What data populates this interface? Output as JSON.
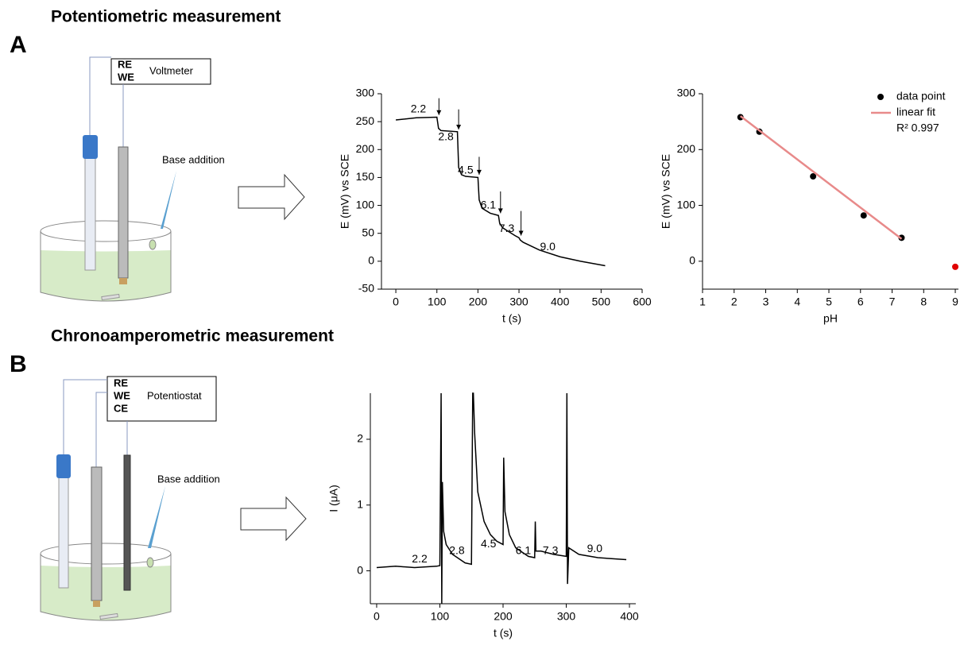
{
  "panels": [
    {
      "label": "A",
      "title": "Potentiometric measurement",
      "electrodes": [
        "RE",
        "WE"
      ],
      "instrument": "Voltmeter",
      "note": "Base addition"
    },
    {
      "label": "B",
      "title": "Chronoamperometric measurement",
      "electrodes": [
        "RE",
        "WE",
        "CE"
      ],
      "instrument": "Potentiostat",
      "note": "Base addition"
    }
  ],
  "chart_data": [
    {
      "type": "line",
      "xlabel": "t (s)",
      "ylabel": "E (mV) vs SCE",
      "xlim": [
        -35,
        600
      ],
      "xticks": [
        0,
        100,
        200,
        300,
        400,
        500,
        600
      ],
      "ylim": [
        -50,
        300
      ],
      "yticks": [
        -50,
        0,
        50,
        100,
        150,
        200,
        250,
        300
      ],
      "series": [
        {
          "color": "#000000",
          "x": [
            0,
            50,
            100,
            104,
            110,
            150,
            153,
            160,
            170,
            200,
            203,
            210,
            230,
            250,
            253,
            260,
            290,
            300,
            303,
            310,
            350,
            400,
            450,
            510
          ],
          "values": [
            253,
            257,
            258,
            238,
            234,
            232,
            168,
            155,
            152,
            150,
            110,
            95,
            86,
            82,
            68,
            60,
            46,
            42,
            38,
            34,
            20,
            8,
            0,
            -8
          ]
        }
      ],
      "annotations": [
        "2.2",
        "2.8",
        "4.5",
        "6.1",
        "7.3",
        "9.0"
      ]
    },
    {
      "type": "scatter",
      "xlabel": "pH",
      "ylabel": "E (mV) vs SCE",
      "xlim": [
        1,
        9.1
      ],
      "xticks": [
        1,
        2,
        3,
        4,
        5,
        6,
        7,
        8,
        9
      ],
      "ylim": [
        -50,
        300
      ],
      "yticks": [
        0,
        100,
        200,
        300
      ],
      "legend": "upper right",
      "series": [
        {
          "name": "data point",
          "mode": "markers",
          "color": "#000000",
          "colors": [
            "#000000",
            "#000000",
            "#000000",
            "#000000",
            "#000000",
            "#e00000"
          ],
          "x": [
            2.2,
            2.8,
            4.5,
            6.1,
            7.3,
            9.0
          ],
          "values": [
            258,
            232,
            152,
            82,
            42,
            -10
          ]
        },
        {
          "name": "linear fit",
          "mode": "line",
          "color": "#e88a8a",
          "x": [
            2.2,
            7.3
          ],
          "values": [
            260,
            40
          ]
        }
      ],
      "fit_label": "R² 0.997"
    },
    {
      "type": "line",
      "xlabel": "t (s)",
      "ylabel": "I (μA)",
      "xlim": [
        -10,
        410
      ],
      "xticks": [
        0,
        100,
        200,
        300,
        400
      ],
      "ylim": [
        -0.5,
        2.7
      ],
      "yticks": [
        0,
        1,
        2
      ],
      "series": [
        {
          "color": "#000000",
          "x": [
            0,
            30,
            60,
            95,
            100,
            102,
            103,
            104,
            106,
            110,
            120,
            140,
            150,
            152,
            153,
            155,
            160,
            170,
            180,
            190,
            200,
            201,
            203,
            210,
            220,
            240,
            250,
            251,
            252,
            260,
            280,
            300,
            301,
            302,
            304,
            320,
            350,
            395
          ],
          "values": [
            0.05,
            0.07,
            0.05,
            0.07,
            0.08,
            2.7,
            -0.5,
            1.35,
            0.6,
            0.4,
            0.25,
            0.12,
            0.1,
            2.7,
            2.7,
            2.1,
            1.2,
            0.75,
            0.55,
            0.45,
            0.4,
            1.72,
            0.9,
            0.55,
            0.35,
            0.22,
            0.2,
            0.75,
            0.3,
            0.3,
            0.25,
            0.22,
            2.7,
            -0.2,
            0.35,
            0.25,
            0.2,
            0.17
          ]
        }
      ],
      "annotations": [
        "2.2",
        "2.8",
        "4.5",
        "6.1",
        "7.3",
        "9.0"
      ]
    }
  ]
}
